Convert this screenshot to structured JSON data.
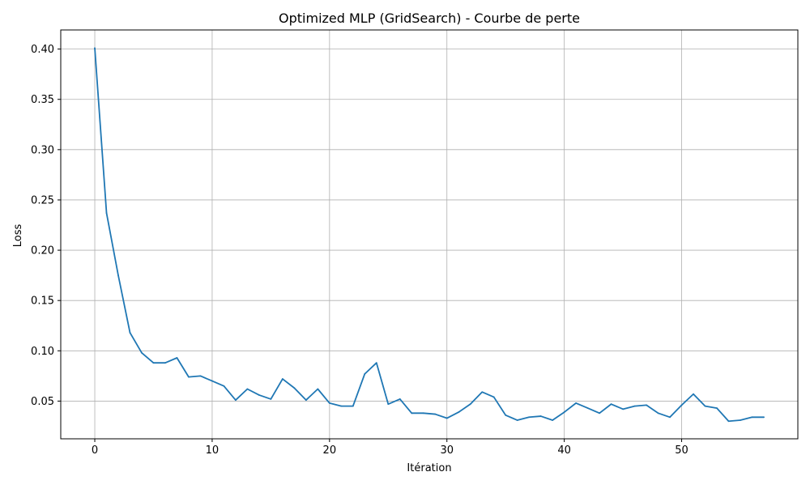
{
  "chart_data": {
    "type": "line",
    "title": "Optimized MLP (GridSearch) - Courbe de perte",
    "xlabel": "Itération",
    "ylabel": "Loss",
    "xlim": [
      -2.9,
      59.9
    ],
    "ylim": [
      0.0125,
      0.419
    ],
    "x_ticks": [
      0,
      10,
      20,
      30,
      40,
      50
    ],
    "y_ticks": [
      0.05,
      0.1,
      0.15,
      0.2,
      0.25,
      0.3,
      0.35,
      0.4
    ],
    "x_tick_labels": [
      "0",
      "10",
      "20",
      "30",
      "40",
      "50"
    ],
    "y_tick_labels": [
      "0.05",
      "0.10",
      "0.15",
      "0.20",
      "0.25",
      "0.30",
      "0.35",
      "0.40"
    ],
    "grid": true,
    "series": [
      {
        "color": "#1f77b4",
        "x": [
          0,
          1,
          2,
          3,
          4,
          5,
          6,
          7,
          8,
          9,
          10,
          11,
          12,
          13,
          14,
          15,
          16,
          17,
          18,
          19,
          20,
          21,
          22,
          23,
          24,
          25,
          26,
          27,
          28,
          29,
          30,
          31,
          32,
          33,
          34,
          35,
          36,
          37,
          38,
          39,
          40,
          41,
          42,
          43,
          44,
          45,
          46,
          47,
          48,
          49,
          50,
          51,
          52,
          53,
          54,
          55,
          56,
          57
        ],
        "values": [
          0.401,
          0.237,
          0.175,
          0.118,
          0.098,
          0.088,
          0.088,
          0.093,
          0.074,
          0.075,
          0.07,
          0.065,
          0.051,
          0.062,
          0.056,
          0.052,
          0.072,
          0.063,
          0.051,
          0.062,
          0.048,
          0.045,
          0.045,
          0.077,
          0.088,
          0.047,
          0.052,
          0.038,
          0.038,
          0.037,
          0.033,
          0.039,
          0.047,
          0.059,
          0.054,
          0.036,
          0.031,
          0.034,
          0.035,
          0.031,
          0.039,
          0.048,
          0.043,
          0.038,
          0.047,
          0.042,
          0.045,
          0.046,
          0.038,
          0.034,
          0.046,
          0.057,
          0.045,
          0.043,
          0.03,
          0.031,
          0.034,
          0.034
        ]
      }
    ]
  }
}
